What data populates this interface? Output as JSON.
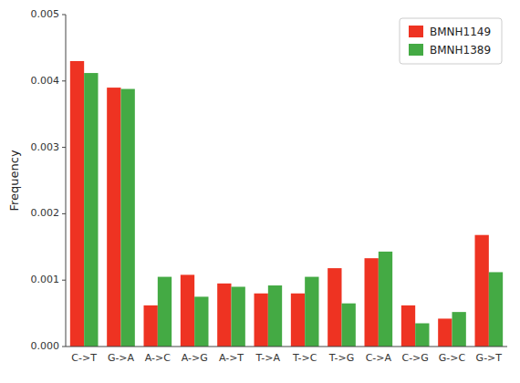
{
  "chart_data": {
    "type": "bar",
    "ylabel": "Frequency",
    "categories": [
      "C->T",
      "G->A",
      "A->C",
      "A->G",
      "A->T",
      "T->A",
      "T->C",
      "T->G",
      "C->A",
      "C->G",
      "G->C",
      "G->T"
    ],
    "series": [
      {
        "name": "BMNH1149",
        "color": "#EE3322",
        "values": [
          0.0043,
          0.0039,
          0.00062,
          0.00108,
          0.00095,
          0.0008,
          0.0008,
          0.00118,
          0.00133,
          0.00062,
          0.00042,
          0.00168
        ]
      },
      {
        "name": "BMNH1389",
        "color": "#44AA44",
        "values": [
          0.00412,
          0.00388,
          0.00105,
          0.00075,
          0.0009,
          0.00092,
          0.00105,
          0.00065,
          0.00143,
          0.00035,
          0.00052,
          0.00112
        ]
      }
    ],
    "ylim": [
      0,
      0.005
    ],
    "yticks": [
      {
        "value": 0.0,
        "label": "0.000"
      },
      0.001,
      0.002,
      0.003,
      0.004,
      0.005
    ],
    "grid": false,
    "legend": "upper right"
  }
}
